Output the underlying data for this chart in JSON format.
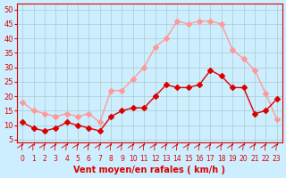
{
  "x": [
    0,
    1,
    2,
    3,
    4,
    5,
    6,
    7,
    8,
    9,
    10,
    11,
    12,
    13,
    14,
    15,
    16,
    17,
    18,
    19,
    20,
    21,
    22,
    23
  ],
  "wind_avg": [
    11,
    9,
    8,
    9,
    11,
    10,
    9,
    8,
    13,
    15,
    16,
    16,
    20,
    24,
    23,
    23,
    24,
    29,
    27,
    23,
    23,
    14,
    15,
    19
  ],
  "wind_gust": [
    18,
    15,
    14,
    13,
    14,
    13,
    14,
    11,
    22,
    22,
    26,
    30,
    37,
    40,
    46,
    45,
    46,
    46,
    45,
    36,
    33,
    29,
    21,
    12
  ],
  "bg_color": "#cceeff",
  "grid_color": "#aacccc",
  "line_avg_color": "#dd0000",
  "line_gust_color": "#ff9999",
  "xlabel": "Vent moyen/en rafales ( km/h )",
  "xlabel_color": "#dd0000",
  "tick_color": "#dd0000",
  "yticks": [
    5,
    10,
    15,
    20,
    25,
    30,
    35,
    40,
    45,
    50
  ],
  "ylim": [
    4,
    52
  ],
  "xlim": [
    -0.5,
    23.5
  ]
}
